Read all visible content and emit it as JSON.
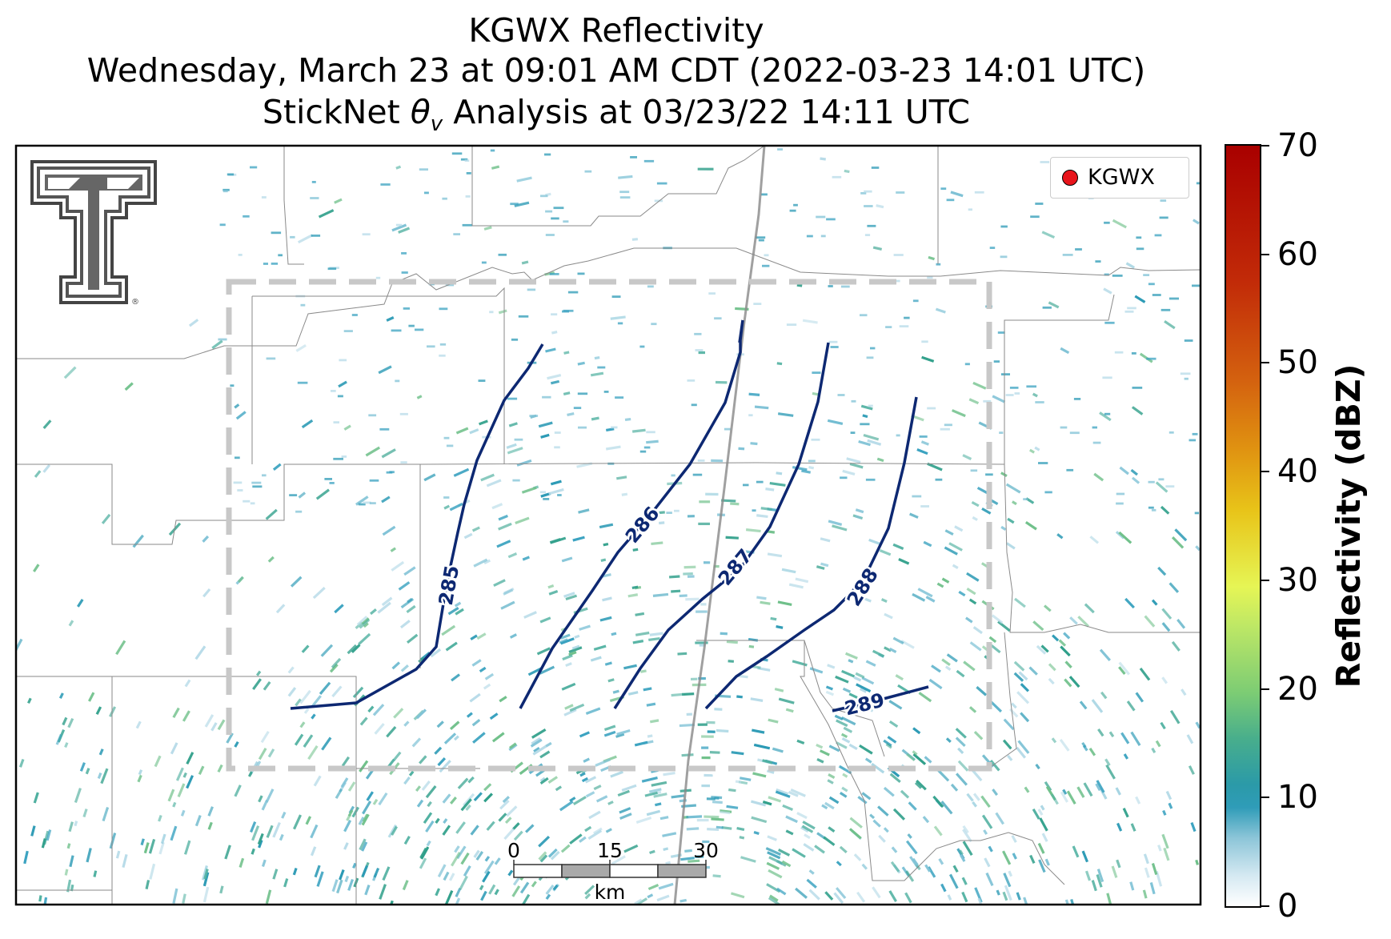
{
  "title": {
    "line1": "KGWX Reflectivity",
    "line2": "Wednesday, March 23 at 09:01 AM CDT (2022-03-23 14:01 UTC)",
    "line3_pre": "StickNet ",
    "line3_sym": "θ",
    "line3_sub": "v",
    "line3_post": " Analysis at 03/23/22 14:11 UTC"
  },
  "legend": {
    "label": "KGWX",
    "marker_color": "#e8141b"
  },
  "contours": [
    {
      "label": "285"
    },
    {
      "label": "286"
    },
    {
      "label": "287"
    },
    {
      "label": "288"
    },
    {
      "label": "289"
    }
  ],
  "contour_color": "#0d2872",
  "scalebar": {
    "ticks": [
      "0",
      "15",
      "30"
    ],
    "unit": "km"
  },
  "colorbar": {
    "label": "Reflectivity (dBZ)",
    "ticks": [
      "0",
      "10",
      "20",
      "30",
      "40",
      "50",
      "60",
      "70"
    ],
    "range": [
      0,
      70
    ]
  },
  "logo": "texas-tech-double-t-logo",
  "echo_color": "#2b9ab5"
}
